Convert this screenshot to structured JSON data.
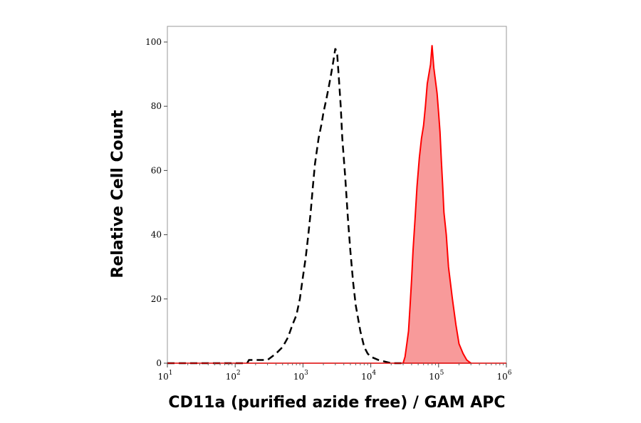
{
  "chart_data": {
    "type": "area",
    "xlabel": "CD11a (purified azide free) / GAM APC",
    "ylabel": "Relative Cell Count",
    "x_scale": "log",
    "xlim": [
      10,
      1000000
    ],
    "ylim": [
      0,
      100
    ],
    "x_ticks": [
      {
        "base": "10",
        "exp": "1"
      },
      {
        "base": "10",
        "exp": "2"
      },
      {
        "base": "10",
        "exp": "3"
      },
      {
        "base": "10",
        "exp": "4"
      },
      {
        "base": "10",
        "exp": "5"
      },
      {
        "base": "10",
        "exp": "6"
      }
    ],
    "y_ticks": [
      "0",
      "20",
      "40",
      "60",
      "80",
      "100"
    ],
    "grid": false,
    "legend": "none",
    "series": [
      {
        "style": "dashed-outline",
        "color": "#000000",
        "x": [
          10,
          150,
          160,
          300,
          400,
          500,
          600,
          700,
          800,
          900,
          1000,
          1100,
          1200,
          1300,
          1400,
          1500,
          1700,
          1900,
          2000,
          2200,
          2400,
          2600,
          2800,
          3000,
          3200,
          3400,
          3600,
          3800,
          4200,
          4600,
          5000,
          5500,
          6000,
          7000,
          8000,
          9000,
          10000,
          13000,
          20000,
          30000
        ],
        "y": [
          0,
          0,
          1,
          1,
          3,
          5,
          8,
          12,
          15,
          20,
          27,
          33,
          40,
          47,
          55,
          62,
          70,
          75,
          78,
          82,
          86,
          90,
          94,
          98,
          96,
          88,
          80,
          70,
          58,
          45,
          35,
          25,
          18,
          10,
          5,
          3,
          2,
          1,
          0,
          0
        ]
      },
      {
        "style": "filled",
        "color": "#ff0000",
        "fill": "#f89a9a",
        "x": [
          30000,
          32000,
          34000,
          36000,
          38000,
          40000,
          42000,
          45000,
          48000,
          52000,
          56000,
          60000,
          64000,
          68000,
          72000,
          76000,
          80000,
          85000,
          90000,
          95000,
          100000,
          105000,
          110000,
          115000,
          120000,
          130000,
          140000,
          160000,
          180000,
          200000,
          230000,
          260000,
          300000
        ],
        "y": [
          0,
          2,
          6,
          10,
          18,
          26,
          35,
          45,
          55,
          64,
          70,
          74,
          80,
          87,
          90,
          93,
          99,
          92,
          88,
          84,
          78,
          72,
          63,
          55,
          47,
          40,
          30,
          20,
          12,
          6,
          3,
          1,
          0
        ]
      }
    ]
  }
}
